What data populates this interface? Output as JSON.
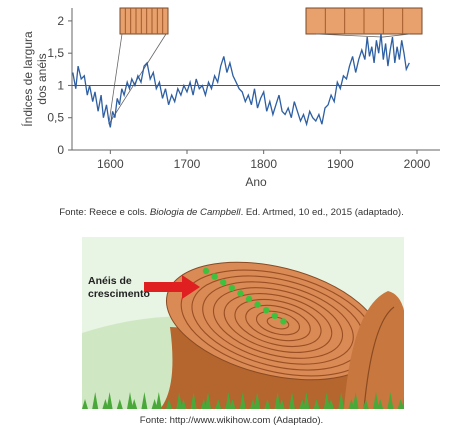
{
  "chart_data": {
    "type": "line",
    "xlabel": "Ano",
    "ylabel_line1": "Índices de largura",
    "ylabel_line2": "dos anéis",
    "xlim": [
      1550,
      2030
    ],
    "ylim": [
      0,
      2.2
    ],
    "xticks": [
      "1600",
      "1700",
      "1800",
      "1900",
      "2000"
    ],
    "yticks": [
      "0",
      "0,5",
      "1",
      "1,5",
      "2"
    ],
    "reference_line": 1,
    "grid": false,
    "line_color": "#2e5fa3",
    "x": [
      1551,
      1555,
      1558,
      1562,
      1566,
      1570,
      1573,
      1577,
      1580,
      1584,
      1588,
      1591,
      1595,
      1598,
      1600,
      1603,
      1606,
      1609,
      1612,
      1615,
      1618,
      1622,
      1625,
      1628,
      1632,
      1636,
      1640,
      1644,
      1648,
      1652,
      1656,
      1660,
      1664,
      1668,
      1672,
      1676,
      1680,
      1684,
      1688,
      1692,
      1696,
      1700,
      1704,
      1708,
      1712,
      1716,
      1720,
      1724,
      1728,
      1732,
      1736,
      1740,
      1744,
      1748,
      1752,
      1756,
      1760,
      1764,
      1768,
      1772,
      1776,
      1780,
      1784,
      1788,
      1792,
      1796,
      1800,
      1804,
      1808,
      1812,
      1816,
      1820,
      1824,
      1828,
      1832,
      1836,
      1840,
      1844,
      1848,
      1852,
      1856,
      1860,
      1864,
      1868,
      1872,
      1876,
      1880,
      1884,
      1888,
      1892,
      1896,
      1900,
      1904,
      1908,
      1912,
      1916,
      1920,
      1924,
      1928,
      1932,
      1935,
      1938,
      1941,
      1944,
      1947,
      1950,
      1953,
      1956,
      1959,
      1962,
      1965,
      1968,
      1971,
      1974,
      1977,
      1980,
      1983,
      1986,
      1990
    ],
    "values": [
      1.2,
      0.95,
      1.3,
      1.1,
      1.15,
      0.85,
      1.0,
      0.75,
      0.9,
      0.6,
      0.85,
      0.5,
      0.7,
      0.45,
      0.35,
      0.6,
      0.5,
      0.8,
      0.7,
      0.95,
      0.85,
      1.05,
      0.95,
      1.1,
      1.0,
      1.15,
      1.05,
      1.3,
      1.35,
      1.1,
      1.2,
      0.95,
      1.05,
      0.8,
      0.95,
      0.7,
      0.85,
      0.75,
      0.95,
      0.85,
      1.0,
      0.9,
      1.05,
      0.85,
      1.1,
      0.95,
      1.0,
      0.85,
      1.05,
      0.95,
      1.15,
      1.05,
      1.3,
      1.45,
      1.2,
      1.35,
      1.15,
      1.05,
      0.95,
      0.9,
      0.75,
      0.85,
      0.7,
      0.95,
      0.65,
      0.8,
      0.9,
      0.6,
      0.75,
      0.55,
      0.7,
      0.85,
      0.6,
      0.55,
      0.65,
      0.5,
      0.75,
      0.6,
      0.45,
      0.55,
      0.4,
      0.6,
      0.5,
      0.45,
      0.55,
      0.4,
      0.65,
      0.7,
      0.85,
      0.75,
      1.05,
      0.95,
      1.15,
      1.1,
      1.3,
      1.45,
      1.2,
      1.4,
      1.55,
      1.4,
      1.75,
      1.45,
      1.6,
      1.35,
      1.7,
      1.5,
      1.8,
      1.4,
      1.65,
      1.3,
      1.55,
      1.75,
      1.35,
      1.6,
      1.4,
      1.7,
      1.5,
      1.25,
      1.35
    ]
  },
  "captions": {
    "caption_1_pre": "Fonte: Reece e cols. ",
    "caption_1_italic": "Biologia de Campbell",
    "caption_1_post": ". Ed. Artmed, 10 ed., 2015 (adaptado).",
    "caption_2": "Fonte: http://www.wikihow.com (Adaptado)."
  },
  "illustration": {
    "label_line1": "Anéis de",
    "label_line2": "crescimento",
    "arrow_color": "#e02020",
    "marker_color": "#3ec23e",
    "sky_color": "#e8f5e4",
    "wood_color": "#d98a55",
    "grass_color": "#4aa83a"
  }
}
